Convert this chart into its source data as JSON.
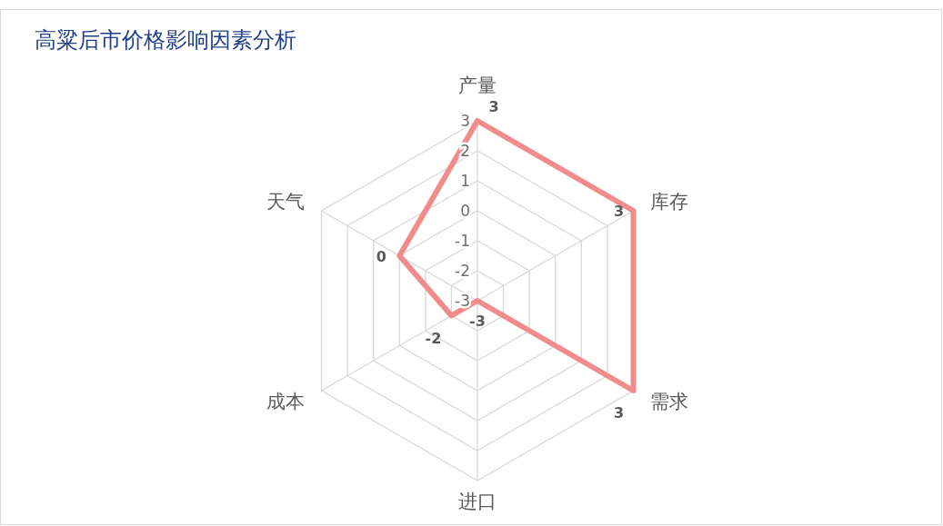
{
  "chart_data": {
    "type": "radar",
    "title": "高粱后市价格影响因素分析",
    "categories": [
      "产量",
      "库存",
      "需求",
      "进口",
      "成本",
      "天气"
    ],
    "series": [
      {
        "color": "#f28b8c",
        "values": [
          3,
          3,
          3,
          -3,
          -2,
          0
        ]
      }
    ],
    "ylim": [
      -3,
      3
    ],
    "yticks": [
      -3,
      -2,
      -1,
      0,
      1,
      2,
      3
    ],
    "grid": true,
    "data_labels": true
  }
}
